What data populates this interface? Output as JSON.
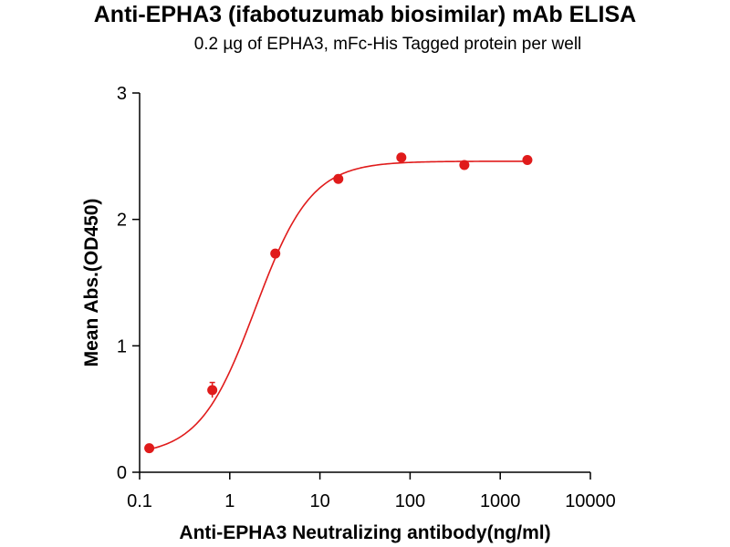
{
  "chart_data": {
    "type": "scatter",
    "title": "Anti-EPHA3 (ifabotuzumab biosimilar) mAb ELISA",
    "subtitle": "0.2 µg of EPHA3, mFc-His Tagged protein per well",
    "xlabel": "Anti-EPHA3 Neutralizing antibody(ng/ml)",
    "ylabel": "Mean Abs.(OD450)",
    "xscale": "log",
    "xlim": [
      0.1,
      10000
    ],
    "ylim": [
      0,
      3
    ],
    "x_ticks": [
      0.1,
      1,
      10,
      100,
      1000,
      10000
    ],
    "x_tick_labels": [
      "0.1",
      "1",
      "10",
      "100",
      "1000",
      "10000"
    ],
    "y_ticks": [
      0,
      1,
      2,
      3
    ],
    "y_tick_labels": [
      "0",
      "1",
      "2",
      "3"
    ],
    "grid": false,
    "series": [
      {
        "x": [
          0.128,
          0.64,
          3.2,
          16,
          80,
          400,
          2000
        ],
        "y": [
          0.19,
          0.65,
          1.73,
          2.32,
          2.49,
          2.43,
          2.47
        ],
        "error": [
          0.0,
          0.06,
          0.0,
          0.0,
          0.0,
          0.0,
          0.0
        ],
        "color": "#e01b1b",
        "fit": "4PL",
        "fit_params": {
          "bottom": 0.13,
          "top": 2.46,
          "ec50": 1.92,
          "hill": 1.4
        }
      }
    ]
  }
}
